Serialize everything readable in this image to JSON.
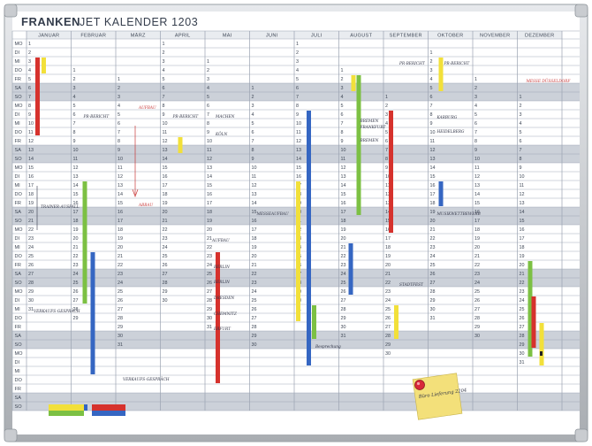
{
  "brand": "FRANKEN",
  "product_title": "JET KALENDER 1203",
  "months": [
    "JANUAR",
    "FEBRUAR",
    "MÄRZ",
    "APRIL",
    "MAI",
    "JUNI",
    "JULI",
    "AUGUST",
    "SEPTEMBER",
    "OKTOBER",
    "NOVEMBER",
    "DEZEMBER"
  ],
  "weekdays": [
    "MO",
    "DI",
    "MI",
    "DO",
    "FR",
    "SA",
    "SO"
  ],
  "colors": {
    "frame": "#b9bcc0",
    "grid_line": "#9aa3b1",
    "weekend_band": "#ccd1d9",
    "header_band": "#e9ecf0",
    "text": "#3e4756",
    "red": "#d6322d",
    "blue": "#3566c2",
    "green": "#7cc043",
    "yellow": "#f2e03a",
    "handwriting": "#2f3346",
    "handwriting_red": "#c83838",
    "sticky_note": "#f3e07a",
    "pin": "#d8283a"
  },
  "handwritten_notes": [
    "PR-BERICHT",
    "AUFBAU",
    "PR-BERICHT",
    "PR-BERICHT",
    "PR-BERICHT",
    "MESSE DÜSSELDORF",
    "ABBAU",
    "TRAINER-AUSFALL",
    "MACHEN",
    "KÖLN",
    "BERLIN",
    "BERLIN",
    "DRESDEN",
    "CHEMNITZ",
    "ERFURT",
    "FRANKFURT",
    "BREMEN",
    "BREMEN",
    "STADTFEST",
    "KARBURG",
    "HEIDELBERG",
    "MUSIKWETTBEWERB",
    "VERKAUFS-GESPRÄCH",
    "MESSEAUFBAU",
    "AUFBAU",
    "VERKAUFS-GESPRÄCH",
    "Besprechung"
  ],
  "sticky_note_text": "Büro Lieferung 2204"
}
